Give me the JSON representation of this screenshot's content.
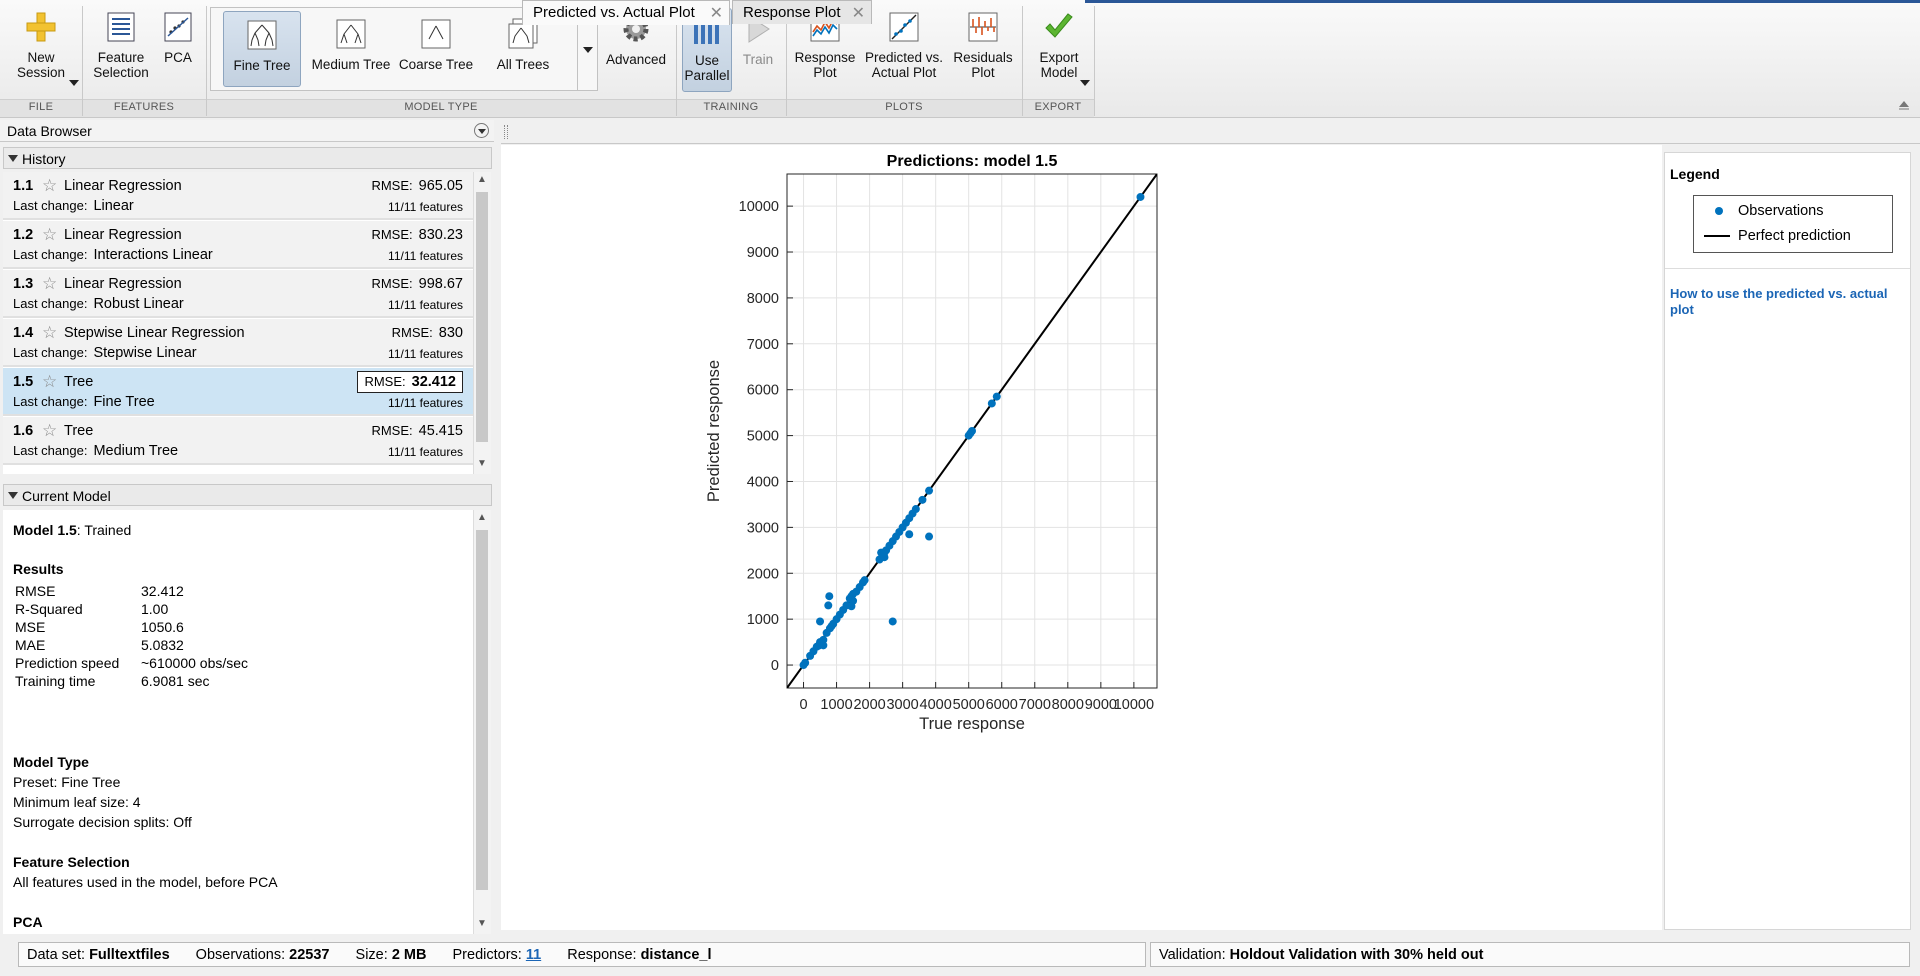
{
  "toolstrip": {
    "new_session": "New\nSession",
    "feature_selection": "Feature\nSelection",
    "pca": "PCA",
    "gallery": [
      "Fine Tree",
      "Medium Tree",
      "Coarse Tree",
      "All Trees"
    ],
    "advanced": "Advanced",
    "use_parallel": "Use\nParallel",
    "train": "Train",
    "response_plot": "Response\nPlot",
    "predicted_vs_actual": "Predicted vs.\nActual Plot",
    "residuals_plot": "Residuals\nPlot",
    "export_model": "Export\nModel",
    "sections": {
      "file": "FILE",
      "features": "FEATURES",
      "model_type": "MODEL TYPE",
      "training": "TRAINING",
      "plots": "PLOTS",
      "export": "EXPORT"
    }
  },
  "data_browser": {
    "title": "Data Browser",
    "history_title": "History",
    "current_model_title": "Current Model",
    "rmse_label": "RMSE:",
    "last_change_label": "Last change:",
    "history": [
      {
        "num": "1.1",
        "type": "Linear Regression",
        "rmse": "965.05",
        "change": "Linear",
        "features": "11/11 features"
      },
      {
        "num": "1.2",
        "type": "Linear Regression",
        "rmse": "830.23",
        "change": "Interactions Linear",
        "features": "11/11 features"
      },
      {
        "num": "1.3",
        "type": "Linear Regression",
        "rmse": "998.67",
        "change": "Robust Linear",
        "features": "11/11 features"
      },
      {
        "num": "1.4",
        "type": "Stepwise Linear Regression",
        "rmse": "830",
        "change": "Stepwise Linear",
        "features": "11/11 features"
      },
      {
        "num": "1.5",
        "type": "Tree",
        "rmse": "32.412",
        "change": "Fine Tree",
        "features": "11/11 features"
      },
      {
        "num": "1.6",
        "type": "Tree",
        "rmse": "45.415",
        "change": "Medium Tree",
        "features": "11/11 features"
      }
    ]
  },
  "current_model": {
    "name": "Model 1.5",
    "status": ": Trained",
    "results_title": "Results",
    "results": [
      {
        "k": "RMSE",
        "v": "32.412"
      },
      {
        "k": "R-Squared",
        "v": "1.00"
      },
      {
        "k": "MSE",
        "v": "1050.6"
      },
      {
        "k": "MAE",
        "v": "5.0832"
      },
      {
        "k": "Prediction speed",
        "v": "~610000 obs/sec"
      },
      {
        "k": "Training time",
        "v": "6.9081 sec"
      }
    ],
    "model_type_title": "Model Type",
    "model_type_lines": [
      "Preset: Fine Tree",
      "Minimum leaf size: 4",
      "Surrogate decision splits: Off"
    ],
    "feature_selection_title": "Feature Selection",
    "feature_selection_text": "All features used in the model, before PCA",
    "pca_title": "PCA"
  },
  "tabs": [
    {
      "label": "Predicted vs. Actual Plot"
    },
    {
      "label": "Response Plot"
    }
  ],
  "legend": {
    "title": "Legend",
    "observations": "Observations",
    "perfect": "Perfect prediction",
    "help": "How to use the predicted vs. actual plot"
  },
  "status": {
    "dataset_label": "Data set:",
    "dataset": "Fulltextfiles",
    "observations_label": "Observations:",
    "observations": "22537",
    "size_label": "Size:",
    "size": "2 MB",
    "predictors_label": "Predictors:",
    "predictors": "11",
    "response_label": "Response:",
    "response": "distance_l",
    "validation_label": "Validation:",
    "validation": "Holdout Validation with 30% held out"
  },
  "colors": {
    "observation": "#0072bd",
    "perfect_line": "#000000",
    "selected_row": "#cde4f4",
    "link": "#1b65b5"
  },
  "chart_data": {
    "type": "scatter",
    "title": "Predictions: model 1.5",
    "xlabel": "True response",
    "ylabel": "Predicted response",
    "xlim": [
      -500,
      10700
    ],
    "ylim": [
      -500,
      10700
    ],
    "xticks": [
      0,
      1000,
      2000,
      3000,
      4000,
      5000,
      6000,
      7000,
      8000,
      9000,
      10000
    ],
    "yticks": [
      0,
      1000,
      2000,
      3000,
      4000,
      5000,
      6000,
      7000,
      8000,
      9000,
      10000
    ],
    "grid": true,
    "legend_position": "side-panel",
    "series": [
      {
        "name": "Observations",
        "marker": "dot",
        "points": [
          [
            0,
            0
          ],
          [
            50,
            50
          ],
          [
            200,
            200
          ],
          [
            300,
            300
          ],
          [
            400,
            400
          ],
          [
            450,
            420
          ],
          [
            500,
            500
          ],
          [
            600,
            550
          ],
          [
            600,
            430
          ],
          [
            700,
            700
          ],
          [
            800,
            800
          ],
          [
            850,
            850
          ],
          [
            900,
            900
          ],
          [
            1000,
            1000
          ],
          [
            1100,
            1100
          ],
          [
            1200,
            1200
          ],
          [
            1300,
            1300
          ],
          [
            1400,
            1450
          ],
          [
            1450,
            1500
          ],
          [
            1500,
            1550
          ],
          [
            1600,
            1600
          ],
          [
            1700,
            1700
          ],
          [
            1800,
            1800
          ],
          [
            1850,
            1850
          ],
          [
            500,
            950
          ],
          [
            750,
            1300
          ],
          [
            780,
            1500
          ],
          [
            1450,
            1280
          ],
          [
            1500,
            1400
          ],
          [
            2300,
            2300
          ],
          [
            2400,
            2400
          ],
          [
            2450,
            2450
          ],
          [
            2500,
            2500
          ],
          [
            2600,
            2600
          ],
          [
            2700,
            2700
          ],
          [
            2800,
            2800
          ],
          [
            2900,
            2900
          ],
          [
            3000,
            3000
          ],
          [
            3100,
            3100
          ],
          [
            3200,
            3200
          ],
          [
            3300,
            3300
          ],
          [
            3400,
            3400
          ],
          [
            3600,
            3600
          ],
          [
            3800,
            3800
          ],
          [
            2350,
            2450
          ],
          [
            2450,
            2350
          ],
          [
            3200,
            2850
          ],
          [
            3800,
            2800
          ],
          [
            2700,
            950
          ],
          [
            5000,
            5000
          ],
          [
            5050,
            5050
          ],
          [
            5100,
            5100
          ],
          [
            5700,
            5700
          ],
          [
            5850,
            5850
          ],
          [
            10200,
            10200
          ]
        ]
      },
      {
        "name": "Perfect prediction",
        "marker": "line",
        "points": [
          [
            -500,
            -500
          ],
          [
            10700,
            10700
          ]
        ]
      }
    ]
  }
}
